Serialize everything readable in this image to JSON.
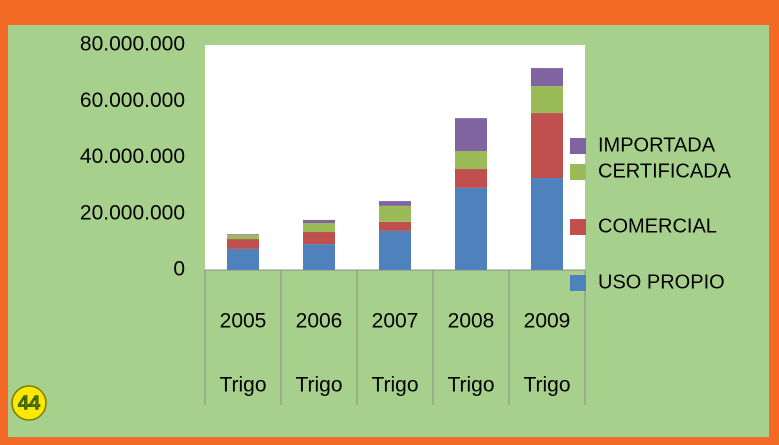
{
  "page_number": "44",
  "chart_data": {
    "type": "stacked-bar",
    "categories": [
      "2005",
      "2006",
      "2007",
      "2008",
      "2009"
    ],
    "subcategories": [
      "Trigo",
      "Trigo",
      "Trigo",
      "Trigo",
      "Trigo"
    ],
    "series": [
      {
        "name": "USO PROPIO",
        "color": "#4f81bd",
        "values": [
          7500000,
          9200000,
          13900000,
          29200000,
          32700000
        ]
      },
      {
        "name": "COMERCIAL",
        "color": "#c0504d",
        "values": [
          3500000,
          4300000,
          3200000,
          6700000,
          23100000
        ]
      },
      {
        "name": "CERTIFICADA",
        "color": "#9bbb59",
        "values": [
          1400000,
          3200000,
          5700000,
          6400000,
          9600000
        ]
      },
      {
        "name": "IMPORTADA",
        "color": "#8064a2",
        "values": [
          300000,
          1100000,
          1700000,
          11700000,
          6400000
        ]
      }
    ],
    "ylim": [
      0,
      80000000
    ],
    "yticks": [
      0,
      {
        "value": 20000000,
        "label": "20.000.000"
      },
      {
        "value": 40000000,
        "label": "40.000.000"
      },
      {
        "value": 60000000,
        "label": "60.000.000"
      },
      {
        "value": 80000000,
        "label": "80.000.000"
      }
    ],
    "legend": "right"
  }
}
